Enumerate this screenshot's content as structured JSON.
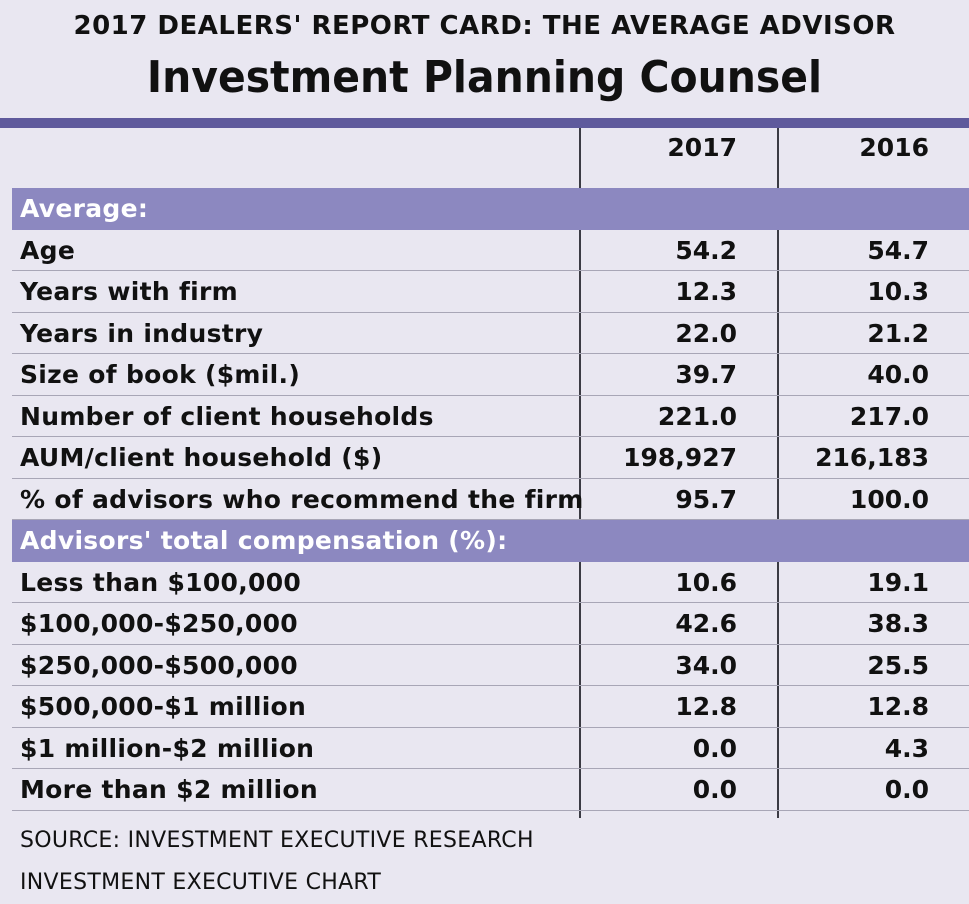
{
  "header": {
    "kicker": "2017 DEALERS' REPORT CARD: THE AVERAGE ADVISOR",
    "title": "Investment Planning Counsel"
  },
  "table": {
    "columns": [
      "2017",
      "2016"
    ],
    "section_average": "Average:",
    "average_rows": [
      {
        "label": "Age",
        "v2017": "54.2",
        "v2016": "54.7"
      },
      {
        "label": "Years with firm",
        "v2017": "12.3",
        "v2016": "10.3"
      },
      {
        "label": "Years in industry",
        "v2017": "22.0",
        "v2016": "21.2"
      },
      {
        "label": "Size of book ($mil.)",
        "v2017": "39.7",
        "v2016": "40.0"
      },
      {
        "label": "Number of client households",
        "v2017": "221.0",
        "v2016": "217.0"
      },
      {
        "label": "AUM/client household ($)",
        "v2017": "198,927",
        "v2016": "216,183"
      },
      {
        "label": "% of advisors who recommend the firm",
        "v2017": "95.7",
        "v2016": "100.0"
      }
    ],
    "section_comp": "Advisors' total compensation (%):",
    "comp_rows": [
      {
        "label": "Less than $100,000",
        "v2017": "10.6",
        "v2016": "19.1"
      },
      {
        "label": "$100,000-$250,000",
        "v2017": "42.6",
        "v2016": "38.3"
      },
      {
        "label": "$250,000-$500,000",
        "v2017": "34.0",
        "v2016": "25.5"
      },
      {
        "label": "$500,000-$1 million",
        "v2017": "12.8",
        "v2016": "12.8"
      },
      {
        "label": "$1 million-$2 million",
        "v2017": "0.0",
        "v2016": "4.3"
      },
      {
        "label": "More than $2 million",
        "v2017": "0.0",
        "v2016": "0.0"
      }
    ]
  },
  "footer": {
    "source": "SOURCE: INVESTMENT EXECUTIVE RESEARCH",
    "credit": "INVESTMENT EXECUTIVE CHART"
  },
  "colors": {
    "background": "#e9e7f1",
    "section": "#8c88c0",
    "rule": "#5f5a9c"
  }
}
